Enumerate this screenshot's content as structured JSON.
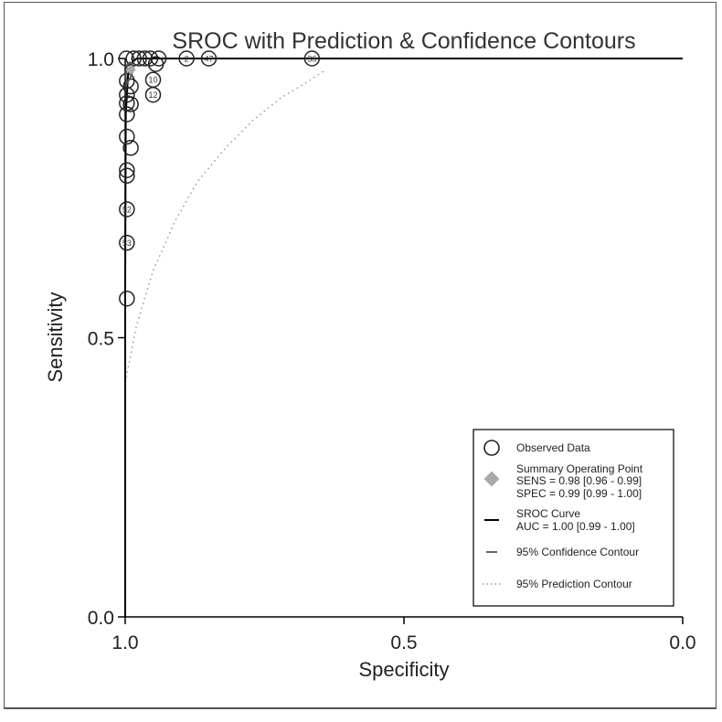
{
  "chart_data": {
    "type": "scatter",
    "title": "SROC with Prediction & Confidence Contours",
    "xlabel": "Specificity",
    "ylabel": "Sensitivity",
    "xlim": [
      1.0,
      0.0
    ],
    "ylim": [
      0.0,
      1.0
    ],
    "x_ticks": [
      "1.0",
      "0.5",
      "0.0"
    ],
    "y_ticks": [
      "1.0",
      "0.5",
      "0.0"
    ],
    "x_reversed": true,
    "grid": false,
    "legend_position": "bottom-right",
    "observed": [
      {
        "label": "36",
        "spec": 0.665,
        "sens": 1.0
      },
      {
        "label": "47",
        "spec": 0.85,
        "sens": 1.0
      },
      {
        "label": "2",
        "spec": 0.89,
        "sens": 1.0
      },
      {
        "label": "",
        "spec": 0.94,
        "sens": 1.0
      },
      {
        "label": "",
        "spec": 0.955,
        "sens": 1.0
      },
      {
        "label": "",
        "spec": 0.965,
        "sens": 1.0
      },
      {
        "label": "",
        "spec": 0.975,
        "sens": 1.0
      },
      {
        "label": "",
        "spec": 0.985,
        "sens": 1.0
      },
      {
        "label": "",
        "spec": 0.998,
        "sens": 1.0
      },
      {
        "label": "",
        "spec": 0.945,
        "sens": 0.99
      },
      {
        "label": "10",
        "spec": 0.95,
        "sens": 0.962
      },
      {
        "label": "12",
        "spec": 0.95,
        "sens": 0.935
      },
      {
        "label": "",
        "spec": 0.99,
        "sens": 0.95
      },
      {
        "label": "",
        "spec": 0.997,
        "sens": 0.96
      },
      {
        "label": "",
        "spec": 0.997,
        "sens": 0.935
      },
      {
        "label": "",
        "spec": 0.997,
        "sens": 0.92
      },
      {
        "label": "",
        "spec": 0.99,
        "sens": 0.918
      },
      {
        "label": "",
        "spec": 0.997,
        "sens": 0.9
      },
      {
        "label": "",
        "spec": 0.997,
        "sens": 0.86
      },
      {
        "label": "",
        "spec": 0.99,
        "sens": 0.84
      },
      {
        "label": "",
        "spec": 0.997,
        "sens": 0.8
      },
      {
        "label": "",
        "spec": 0.997,
        "sens": 0.79
      },
      {
        "label": "52",
        "spec": 0.997,
        "sens": 0.73
      },
      {
        "label": "53",
        "spec": 0.997,
        "sens": 0.67
      },
      {
        "label": "",
        "spec": 0.997,
        "sens": 0.57
      }
    ],
    "summary_point": {
      "spec": 0.99,
      "sens": 0.98
    },
    "sroc_curve": [
      [
        1.0,
        0.0
      ],
      [
        1.0,
        0.6
      ],
      [
        0.999,
        0.9
      ],
      [
        0.995,
        0.97
      ],
      [
        0.99,
        0.99
      ],
      [
        0.98,
        1.0
      ],
      [
        0.0,
        1.0
      ]
    ],
    "confidence_contour": [
      [
        0.997,
        0.955
      ],
      [
        0.993,
        0.962
      ],
      [
        0.988,
        0.972
      ],
      [
        0.985,
        0.982
      ],
      [
        0.987,
        0.99
      ],
      [
        0.992,
        0.993
      ],
      [
        0.996,
        0.99
      ],
      [
        0.998,
        0.98
      ],
      [
        0.999,
        0.968
      ],
      [
        0.997,
        0.955
      ]
    ],
    "prediction_contour": [
      [
        1.0,
        0.42
      ],
      [
        0.98,
        0.52
      ],
      [
        0.95,
        0.62
      ],
      [
        0.91,
        0.71
      ],
      [
        0.87,
        0.78
      ],
      [
        0.82,
        0.84
      ],
      [
        0.77,
        0.89
      ],
      [
        0.72,
        0.93
      ],
      [
        0.67,
        0.96
      ],
      [
        0.64,
        0.98
      ]
    ],
    "legend": {
      "observed": "Observed Data",
      "summary_title": "Summary Operating Point",
      "sens": "SENS = 0.98 [0.96 - 0.99]",
      "spec": "SPEC = 0.99 [0.99 - 1.00]",
      "sroc_title": "SROC Curve",
      "auc": "AUC = 1.00 [0.99 - 1.00]",
      "confidence": "95% Confidence Contour",
      "prediction": "95% Prediction Contour"
    },
    "colors": {
      "axis": "#000000",
      "marker": "#222222",
      "summary": "#aaaaaa",
      "contour": "#999999"
    }
  }
}
